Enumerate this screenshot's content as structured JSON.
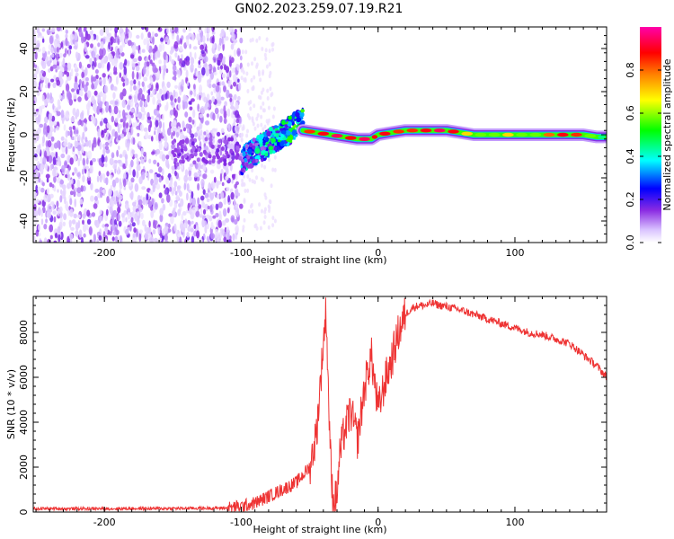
{
  "title": "GN02.2023.259.07.19.R21",
  "chart_data": [
    {
      "type": "heatmap",
      "xlabel": "Height of straight line (km)",
      "ylabel": "Frequency (Hz)",
      "xlim": [
        -252,
        167
      ],
      "ylim": [
        -50,
        50
      ],
      "x_ticks": [
        -200,
        -100,
        0,
        100
      ],
      "y_ticks": [
        -40,
        -20,
        0,
        20,
        40
      ],
      "colorbar": {
        "label": "Normalized spectral amplitude",
        "range": [
          0,
          1
        ],
        "ticks": [
          0.0,
          0.2,
          0.4,
          0.6,
          0.8
        ],
        "colormap": [
          "#ffffff",
          "#c9a6ff",
          "#8a2be2",
          "#0000ff",
          "#00ffff",
          "#00ff00",
          "#ffff00",
          "#ff8000",
          "#ff0000",
          "#ff00aa"
        ]
      },
      "noise_region": {
        "x_range": [
          -252,
          -100
        ],
        "y_range": [
          -50,
          50
        ],
        "amplitude": 0.15
      },
      "transition_region": {
        "x_range": [
          -100,
          -55
        ],
        "y_from": -12,
        "y_to": 6,
        "amplitude": 0.35
      },
      "signal_trace": {
        "x": [
          -55,
          -45,
          -35,
          -25,
          -15,
          -5,
          0,
          10,
          20,
          30,
          40,
          50,
          60,
          70,
          80,
          90,
          100,
          110,
          120,
          130,
          140,
          150,
          160,
          167
        ],
        "y": [
          2,
          1,
          0,
          -1,
          -2,
          -2,
          0,
          1,
          2,
          2,
          2,
          2,
          1,
          0,
          0,
          0,
          0,
          0,
          0,
          0,
          0,
          0,
          -1,
          -1
        ],
        "amplitude": [
          0.85,
          0.9,
          0.95,
          0.9,
          0.95,
          0.9,
          0.9,
          0.85,
          0.85,
          0.9,
          0.95,
          0.9,
          0.7,
          0.6,
          0.6,
          0.7,
          0.6,
          0.6,
          0.8,
          0.9,
          0.85,
          0.6,
          0.5,
          0.5
        ]
      }
    },
    {
      "type": "line",
      "xlabel": "Height of straight line (km)",
      "ylabel": "SNR (10 * v/v)",
      "xlim": [
        -252,
        167
      ],
      "ylim": [
        0,
        9600
      ],
      "x_ticks": [
        -200,
        -100,
        0,
        100
      ],
      "y_ticks": [
        0,
        2000,
        4000,
        6000,
        8000
      ],
      "color": "#ee3333",
      "series": [
        {
          "x": [
            -252,
            -200,
            -150,
            -110,
            -100,
            -90,
            -80,
            -70,
            -60,
            -50,
            -45,
            -40,
            -38,
            -36,
            -34,
            -32,
            -30,
            -28,
            -25,
            -20,
            -15,
            -10,
            -5,
            0,
            5,
            10,
            15,
            20,
            25,
            30,
            35,
            40,
            45,
            50,
            60,
            70,
            80,
            90,
            100,
            105,
            110,
            120,
            130,
            140,
            150,
            160,
            167
          ],
          "y": [
            150,
            150,
            160,
            180,
            250,
            400,
            700,
            1000,
            1300,
            2000,
            3500,
            7500,
            9000,
            4800,
            1200,
            400,
            800,
            2500,
            3500,
            4500,
            3200,
            5500,
            7000,
            4500,
            5800,
            6800,
            8000,
            8800,
            9100,
            9200,
            9200,
            9300,
            9200,
            9150,
            9000,
            8800,
            8600,
            8400,
            8200,
            8100,
            8000,
            7900,
            7700,
            7500,
            7000,
            6500,
            6000
          ]
        }
      ]
    }
  ]
}
